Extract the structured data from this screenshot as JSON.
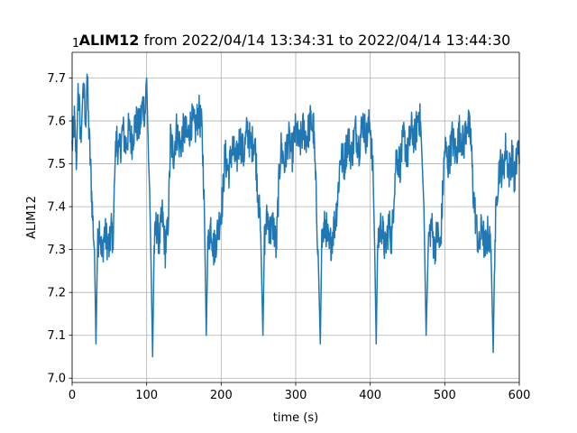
{
  "chart_data": {
    "type": "line",
    "title_bold": "ALIM12",
    "title_rest": " from 2022/04/14 13:34:31 to 2022/04/14 13:44:30",
    "xlabel": "time (s)",
    "ylabel": "ALIM12",
    "offset_label": "1e6",
    "xlim": [
      0,
      600
    ],
    "ylim": [
      6.99,
      7.76
    ],
    "xticks": [
      0,
      100,
      200,
      300,
      400,
      500,
      600
    ],
    "xtick_labels": [
      "0",
      "100",
      "200",
      "300",
      "400",
      "500",
      "600"
    ],
    "yticks": [
      7.0,
      7.1,
      7.2,
      7.3,
      7.4,
      7.5,
      7.6,
      7.7
    ],
    "ytick_labels": [
      "7.0",
      "7.1",
      "7.2",
      "7.3",
      "7.4",
      "7.5",
      "7.6",
      "7.7"
    ],
    "grid": true,
    "series": [
      {
        "color": "#1f77b4",
        "keypoints": [
          [
            0,
            7.54
          ],
          [
            3,
            7.6
          ],
          [
            6,
            7.5
          ],
          [
            8,
            7.68
          ],
          [
            12,
            7.55
          ],
          [
            15,
            7.7
          ],
          [
            18,
            7.58
          ],
          [
            20,
            7.72
          ],
          [
            22,
            7.6
          ],
          [
            25,
            7.48
          ],
          [
            28,
            7.36
          ],
          [
            30,
            7.3
          ],
          [
            32,
            7.08
          ],
          [
            34,
            7.3
          ],
          [
            37,
            7.36
          ],
          [
            40,
            7.28
          ],
          [
            43,
            7.34
          ],
          [
            47,
            7.32
          ],
          [
            50,
            7.3
          ],
          [
            53,
            7.36
          ],
          [
            55,
            7.3
          ],
          [
            57,
            7.5
          ],
          [
            60,
            7.56
          ],
          [
            63,
            7.52
          ],
          [
            68,
            7.58
          ],
          [
            72,
            7.54
          ],
          [
            76,
            7.58
          ],
          [
            80,
            7.55
          ],
          [
            85,
            7.6
          ],
          [
            90,
            7.58
          ],
          [
            95,
            7.64
          ],
          [
            98,
            7.62
          ],
          [
            100,
            7.7
          ],
          [
            102,
            7.55
          ],
          [
            104,
            7.44
          ],
          [
            106,
            7.26
          ],
          [
            108,
            7.05
          ],
          [
            110,
            7.3
          ],
          [
            113,
            7.36
          ],
          [
            117,
            7.32
          ],
          [
            121,
            7.38
          ],
          [
            125,
            7.3
          ],
          [
            128,
            7.34
          ],
          [
            130,
            7.42
          ],
          [
            132,
            7.56
          ],
          [
            136,
            7.52
          ],
          [
            140,
            7.58
          ],
          [
            145,
            7.54
          ],
          [
            150,
            7.58
          ],
          [
            155,
            7.56
          ],
          [
            160,
            7.6
          ],
          [
            165,
            7.58
          ],
          [
            170,
            7.62
          ],
          [
            174,
            7.58
          ],
          [
            177,
            7.44
          ],
          [
            180,
            7.1
          ],
          [
            182,
            7.3
          ],
          [
            186,
            7.36
          ],
          [
            190,
            7.3
          ],
          [
            195,
            7.34
          ],
          [
            199,
            7.38
          ],
          [
            202,
            7.42
          ],
          [
            205,
            7.52
          ],
          [
            210,
            7.48
          ],
          [
            215,
            7.54
          ],
          [
            220,
            7.5
          ],
          [
            225,
            7.56
          ],
          [
            230,
            7.52
          ],
          [
            235,
            7.58
          ],
          [
            240,
            7.54
          ],
          [
            245,
            7.56
          ],
          [
            249,
            7.44
          ],
          [
            253,
            7.34
          ],
          [
            256,
            7.1
          ],
          [
            258,
            7.32
          ],
          [
            262,
            7.38
          ],
          [
            266,
            7.34
          ],
          [
            270,
            7.36
          ],
          [
            274,
            7.3
          ],
          [
            277,
            7.44
          ],
          [
            280,
            7.54
          ],
          [
            285,
            7.5
          ],
          [
            290,
            7.56
          ],
          [
            295,
            7.52
          ],
          [
            300,
            7.58
          ],
          [
            305,
            7.54
          ],
          [
            310,
            7.58
          ],
          [
            315,
            7.56
          ],
          [
            320,
            7.6
          ],
          [
            324,
            7.58
          ],
          [
            327,
            7.44
          ],
          [
            330,
            7.3
          ],
          [
            333,
            7.08
          ],
          [
            335,
            7.32
          ],
          [
            340,
            7.36
          ],
          [
            345,
            7.3
          ],
          [
            350,
            7.34
          ],
          [
            354,
            7.38
          ],
          [
            357,
            7.44
          ],
          [
            360,
            7.52
          ],
          [
            365,
            7.5
          ],
          [
            370,
            7.56
          ],
          [
            375,
            7.52
          ],
          [
            380,
            7.58
          ],
          [
            385,
            7.54
          ],
          [
            390,
            7.6
          ],
          [
            395,
            7.56
          ],
          [
            400,
            7.6
          ],
          [
            404,
            7.46
          ],
          [
            406,
            7.3
          ],
          [
            408,
            7.08
          ],
          [
            410,
            7.32
          ],
          [
            415,
            7.36
          ],
          [
            420,
            7.3
          ],
          [
            425,
            7.36
          ],
          [
            429,
            7.32
          ],
          [
            432,
            7.44
          ],
          [
            435,
            7.52
          ],
          [
            440,
            7.5
          ],
          [
            445,
            7.56
          ],
          [
            450,
            7.52
          ],
          [
            455,
            7.58
          ],
          [
            460,
            7.56
          ],
          [
            465,
            7.62
          ],
          [
            468,
            7.58
          ],
          [
            472,
            7.4
          ],
          [
            475,
            7.1
          ],
          [
            478,
            7.32
          ],
          [
            482,
            7.36
          ],
          [
            486,
            7.3
          ],
          [
            490,
            7.34
          ],
          [
            494,
            7.3
          ],
          [
            497,
            7.42
          ],
          [
            500,
            7.54
          ],
          [
            505,
            7.5
          ],
          [
            510,
            7.56
          ],
          [
            515,
            7.52
          ],
          [
            520,
            7.58
          ],
          [
            525,
            7.54
          ],
          [
            530,
            7.6
          ],
          [
            535,
            7.56
          ],
          [
            538,
            7.44
          ],
          [
            542,
            7.36
          ],
          [
            546,
            7.3
          ],
          [
            550,
            7.36
          ],
          [
            554,
            7.3
          ],
          [
            558,
            7.34
          ],
          [
            562,
            7.3
          ],
          [
            565,
            7.06
          ],
          [
            567,
            7.3
          ],
          [
            570,
            7.44
          ],
          [
            574,
            7.5
          ],
          [
            578,
            7.48
          ],
          [
            582,
            7.54
          ],
          [
            586,
            7.48
          ],
          [
            590,
            7.52
          ],
          [
            594,
            7.46
          ],
          [
            598,
            7.54
          ],
          [
            600,
            7.5
          ]
        ],
        "noise_amplitude": 0.045
      }
    ]
  }
}
